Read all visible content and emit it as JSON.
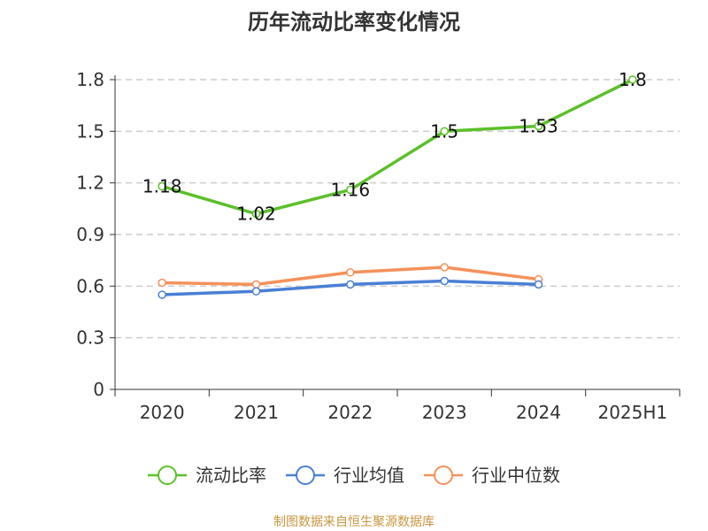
{
  "chart_data": {
    "type": "line",
    "title": "历年流动比率变化情况",
    "categories": [
      "2020",
      "2021",
      "2022",
      "2023",
      "2024",
      "2025H1"
    ],
    "y_ticks": [
      "0",
      "0.3",
      "0.6",
      "0.9",
      "1.2",
      "1.5",
      "1.8"
    ],
    "ylim": [
      0,
      1.8
    ],
    "grid": true,
    "legend_position": "bottom",
    "series": [
      {
        "name": "流动比率",
        "color": "#5cc02a",
        "values": [
          1.18,
          1.02,
          1.16,
          1.5,
          1.53,
          1.8
        ],
        "labels": [
          "1.18",
          "1.02",
          "1.16",
          "1.5",
          "1.53",
          "1.8"
        ]
      },
      {
        "name": "行业均值",
        "color": "#4a7fd6",
        "values": [
          0.55,
          0.57,
          0.61,
          0.63,
          0.61,
          null
        ]
      },
      {
        "name": "行业中位数",
        "color": "#f5915a",
        "values": [
          0.62,
          0.61,
          0.68,
          0.71,
          0.64,
          null
        ]
      }
    ]
  },
  "source_note": "制图数据来自恒生聚源数据库"
}
